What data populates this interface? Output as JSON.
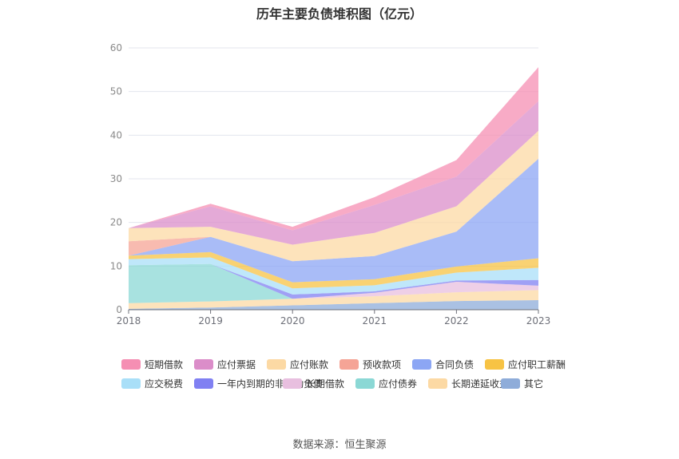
{
  "chart_data": {
    "type": "area",
    "stacked": true,
    "title": "历年主要负债堆积图（亿元）",
    "x": [
      "2018",
      "2019",
      "2020",
      "2021",
      "2022",
      "2023"
    ],
    "ylim": [
      0,
      60
    ],
    "yticks": [
      0,
      10,
      20,
      30,
      40,
      50,
      60
    ],
    "grid": true,
    "legend_position": "bottom",
    "series": [
      {
        "name": "其它",
        "color": "#8eacd9",
        "values": [
          0.2,
          0.5,
          1.0,
          1.5,
          2.0,
          2.2
        ]
      },
      {
        "name": "长期递延收益",
        "color": "#fcd9a4",
        "values": [
          1.3,
          1.4,
          1.5,
          1.6,
          2.0,
          2.3
        ]
      },
      {
        "name": "应付债券",
        "color": "#8bd8d5",
        "values": [
          8.7,
          8.6,
          0.0,
          0.0,
          0.0,
          0.0
        ]
      },
      {
        "name": "长期借款",
        "color": "#e8bfdf",
        "values": [
          0.0,
          0.0,
          0.0,
          0.8,
          2.4,
          1.0
        ]
      },
      {
        "name": "一年内到期的非流动负债",
        "color": "#8080f2",
        "values": [
          0.0,
          0.0,
          1.0,
          0.3,
          0.3,
          1.3
        ]
      },
      {
        "name": "应交税费",
        "color": "#a9dff8",
        "values": [
          1.4,
          1.5,
          1.4,
          1.4,
          1.8,
          2.8
        ]
      },
      {
        "name": "应付职工薪酬",
        "color": "#f7c344",
        "values": [
          0.8,
          1.2,
          1.4,
          1.4,
          1.4,
          2.2
        ]
      },
      {
        "name": "合同负债",
        "color": "#8ca6f4",
        "values": [
          0.0,
          3.5,
          4.8,
          5.3,
          8.0,
          22.8
        ]
      },
      {
        "name": "预收款项",
        "color": "#f5a496",
        "values": [
          3.3,
          0.0,
          0.0,
          0.0,
          0.0,
          0.0
        ]
      },
      {
        "name": "应付账款",
        "color": "#fcd9a4",
        "values": [
          3.0,
          2.3,
          3.8,
          5.3,
          5.8,
          6.4
        ]
      },
      {
        "name": "应付票据",
        "color": "#db8dc9",
        "values": [
          0.0,
          4.7,
          3.3,
          6.4,
          6.8,
          6.8
        ]
      },
      {
        "name": "短期借款",
        "color": "#f58fb3",
        "values": [
          0.0,
          0.6,
          0.8,
          1.8,
          3.8,
          7.8
        ]
      }
    ],
    "legend_order": [
      "短期借款",
      "应付票据",
      "应付账款",
      "预收款项",
      "合同负债",
      "应付职工薪酬",
      "应交税费",
      "一年内到期的非流动负债",
      "长期借款",
      "应付债券",
      "长期递延收益",
      "其它"
    ]
  },
  "source_text": "数据来源：恒生聚源"
}
